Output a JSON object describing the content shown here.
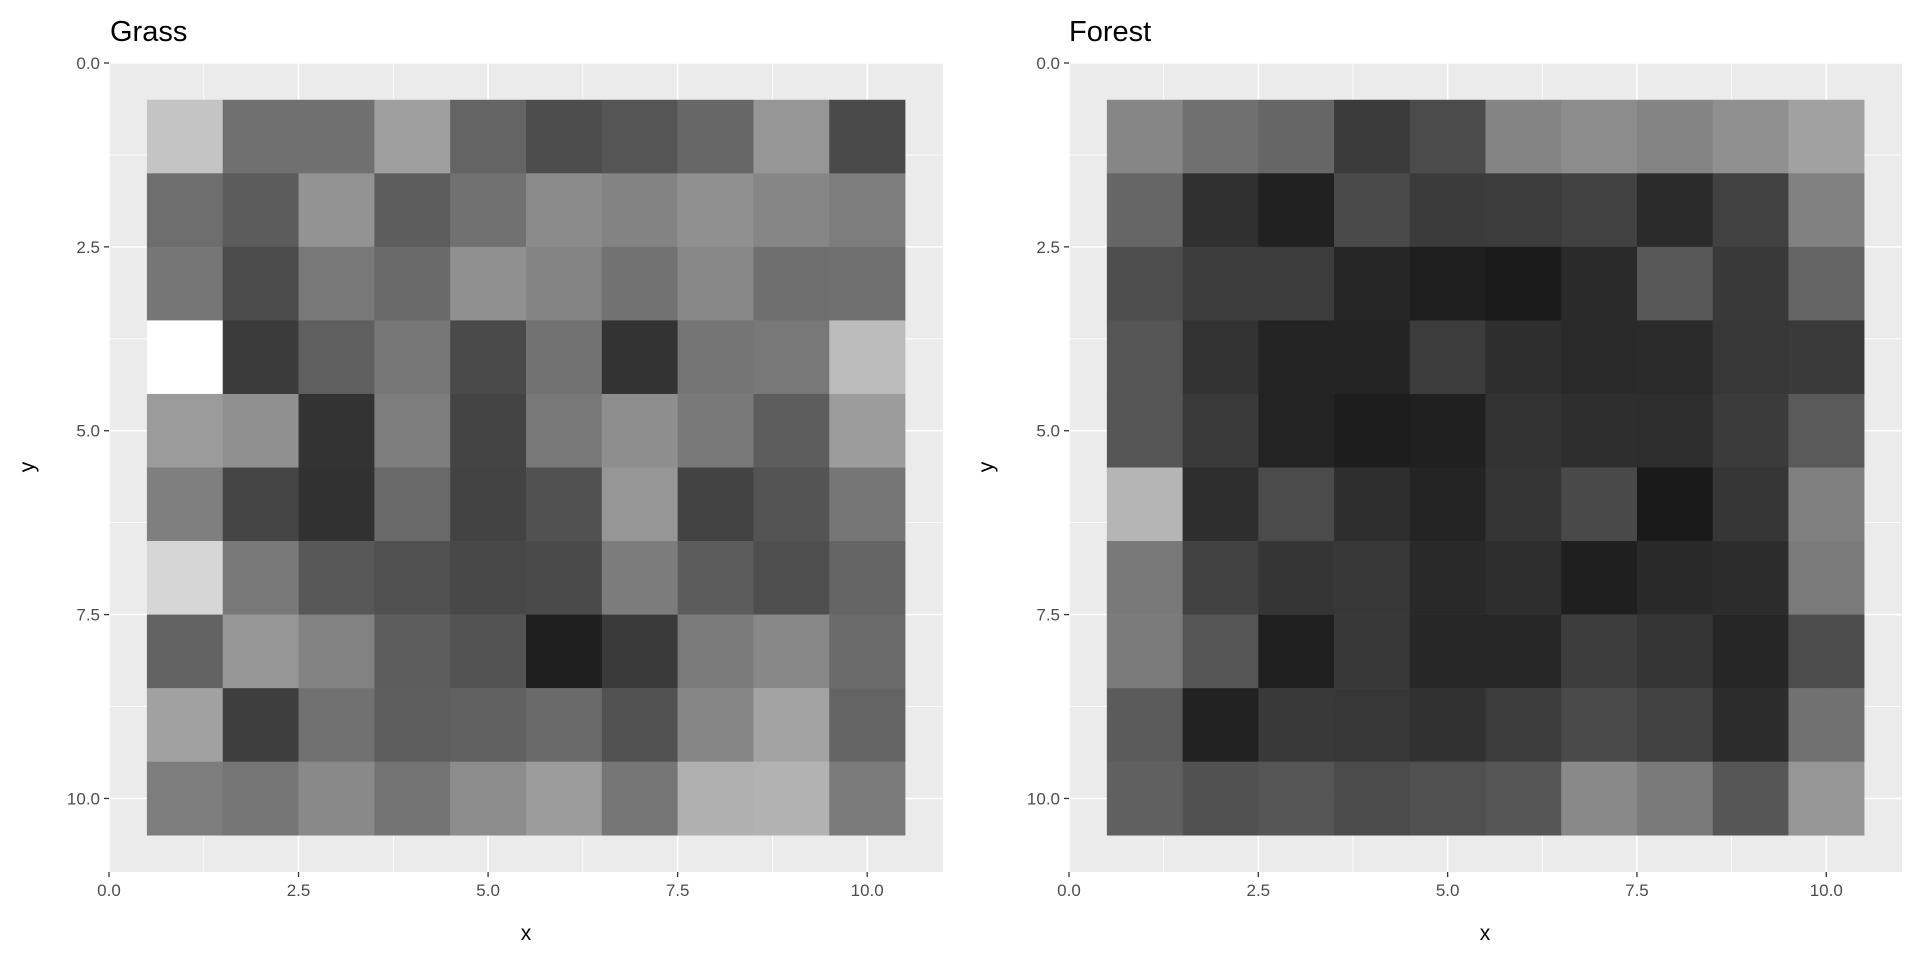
{
  "chart_data": [
    {
      "type": "heatmap",
      "title": "Grass",
      "xlabel": "x",
      "ylabel": "y",
      "xlim": [
        0,
        11
      ],
      "ylim": [
        0,
        11
      ],
      "y_reversed": true,
      "x_ticks": [
        "0.0",
        "2.5",
        "5.0",
        "7.5",
        "10.0"
      ],
      "y_ticks": [
        "0.0",
        "2.5",
        "5.0",
        "7.5",
        "10.0"
      ],
      "tick_values": [
        0,
        2.5,
        5,
        7.5,
        10
      ],
      "grid": true,
      "x": [
        1,
        2,
        3,
        4,
        5,
        6,
        7,
        8,
        9,
        10
      ],
      "y": [
        1,
        2,
        3,
        4,
        5,
        6,
        7,
        8,
        9,
        10
      ],
      "fill": [
        [
          "#c4c4c4",
          "#707070",
          "#707070",
          "#9f9f9f",
          "#646464",
          "#4d4d4d",
          "#555555",
          "#676767",
          "#969696",
          "#4a4a4a"
        ],
        [
          "#6e6e6e",
          "#5c5c5c",
          "#939393",
          "#5d5d5d",
          "#717171",
          "#8b8b8b",
          "#838383",
          "#909090",
          "#868686",
          "#7d7d7d"
        ],
        [
          "#767676",
          "#4b4b4b",
          "#787878",
          "#6a6a6a",
          "#909090",
          "#848484",
          "#727272",
          "#878787",
          "#6f6f6f",
          "#707070"
        ],
        [
          "#ffffff",
          "#3b3b3b",
          "#5f5f5f",
          "#777777",
          "#4a4a4a",
          "#727272",
          "#333333",
          "#757575",
          "#787878",
          "#bcbcbc"
        ],
        [
          "#9b9b9b",
          "#909090",
          "#333333",
          "#7d7d7d",
          "#444444",
          "#787878",
          "#8e8e8e",
          "#797979",
          "#5d5d5d",
          "#9c9c9c"
        ],
        [
          "#7f7f7f",
          "#454545",
          "#313131",
          "#696969",
          "#434343",
          "#515151",
          "#969696",
          "#434343",
          "#545454",
          "#767676"
        ],
        [
          "#d6d6d6",
          "#797979",
          "#585858",
          "#505050",
          "#484848",
          "#4a4a4a",
          "#7c7c7c",
          "#5c5c5c",
          "#4f4f4f",
          "#656565"
        ],
        [
          "#636363",
          "#969696",
          "#828282",
          "#5d5d5d",
          "#535353",
          "#1e1e1e",
          "#3a3a3a",
          "#7b7b7b",
          "#888888",
          "#6b6b6b"
        ],
        [
          "#a1a1a1",
          "#3e3e3e",
          "#717171",
          "#5e5e5e",
          "#616161",
          "#6a6a6a",
          "#525252",
          "#868686",
          "#a3a3a3",
          "#646464"
        ],
        [
          "#7d7d7d",
          "#767676",
          "#898989",
          "#747474",
          "#8c8c8c",
          "#9b9b9b",
          "#767676",
          "#b0b0b0",
          "#b2b2b2",
          "#7b7b7b"
        ]
      ]
    },
    {
      "type": "heatmap",
      "title": "Forest",
      "xlabel": "x",
      "ylabel": "y",
      "xlim": [
        0,
        11
      ],
      "ylim": [
        0,
        11
      ],
      "y_reversed": true,
      "x_ticks": [
        "0.0",
        "2.5",
        "5.0",
        "7.5",
        "10.0"
      ],
      "y_ticks": [
        "0.0",
        "2.5",
        "5.0",
        "7.5",
        "10.0"
      ],
      "tick_values": [
        0,
        2.5,
        5,
        7.5,
        10
      ],
      "grid": true,
      "x": [
        1,
        2,
        3,
        4,
        5,
        6,
        7,
        8,
        9,
        10
      ],
      "y": [
        1,
        2,
        3,
        4,
        5,
        6,
        7,
        8,
        9,
        10
      ],
      "fill": [
        [
          "#868686",
          "#707070",
          "#666666",
          "#3b3b3b",
          "#4b4b4b",
          "#848484",
          "#8c8c8c",
          "#848484",
          "#909090",
          "#a1a1a1"
        ],
        [
          "#666666",
          "#303030",
          "#212121",
          "#4a4a4a",
          "#3b3b3b",
          "#3c3c3c",
          "#424242",
          "#2b2b2b",
          "#414141",
          "#818181"
        ],
        [
          "#4e4e4e",
          "#3c3c3c",
          "#3c3c3c",
          "#262626",
          "#1e1e1e",
          "#1b1b1b",
          "#2a2a2a",
          "#585858",
          "#393939",
          "#656565"
        ],
        [
          "#555555",
          "#333333",
          "#242424",
          "#242424",
          "#3c3c3c",
          "#2e2e2e",
          "#2a2a2a",
          "#2b2b2b",
          "#373737",
          "#3a3a3a"
        ],
        [
          "#555555",
          "#3a3a3a",
          "#232323",
          "#1d1d1d",
          "#202020",
          "#323232",
          "#2e2e2e",
          "#2d2d2d",
          "#3b3b3b",
          "#5a5a5a"
        ],
        [
          "#b5b5b5",
          "#2e2e2e",
          "#4b4b4b",
          "#2e2e2e",
          "#242424",
          "#353535",
          "#494949",
          "#1a1a1a",
          "#363636",
          "#808080"
        ],
        [
          "#797979",
          "#424242",
          "#353535",
          "#373737",
          "#292929",
          "#2e2e2e",
          "#1f1f1f",
          "#292929",
          "#2c2c2c",
          "#7b7b7b"
        ],
        [
          "#7b7b7b",
          "#555555",
          "#202020",
          "#383838",
          "#272727",
          "#272727",
          "#3d3d3d",
          "#353535",
          "#262626",
          "#4d4d4d"
        ],
        [
          "#5b5b5b",
          "#222222",
          "#393939",
          "#373737",
          "#313131",
          "#3c3c3c",
          "#4a4a4a",
          "#414141",
          "#2c2c2c",
          "#717171"
        ],
        [
          "#606060",
          "#515151",
          "#555555",
          "#4b4b4b",
          "#505050",
          "#555555",
          "#898989",
          "#7a7a7a",
          "#565656",
          "#969696"
        ]
      ]
    }
  ]
}
